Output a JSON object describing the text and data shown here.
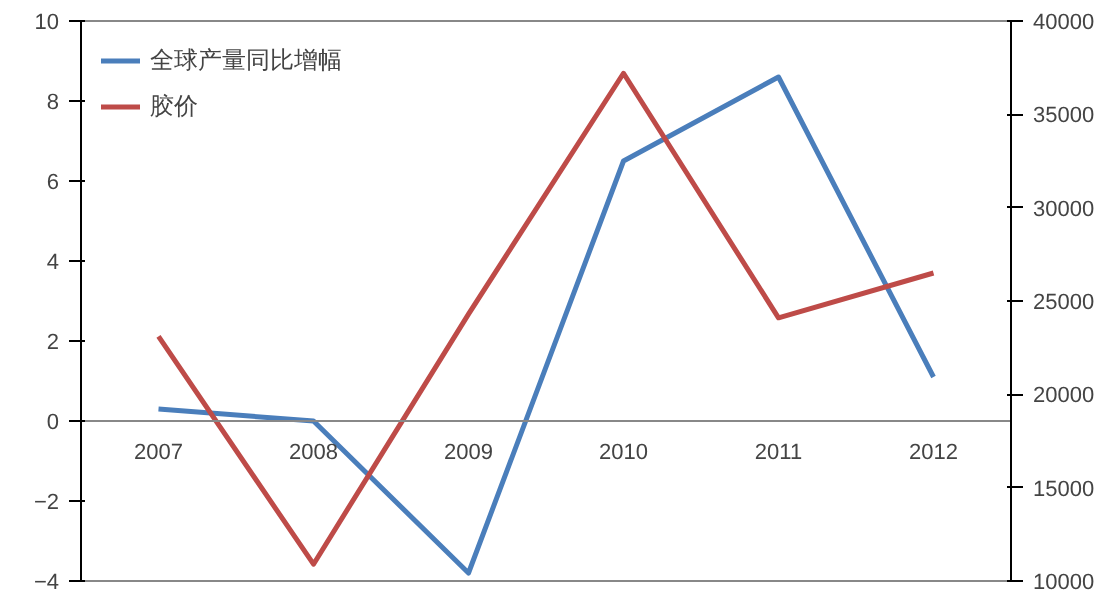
{
  "chart_data": {
    "type": "line",
    "categories": [
      "2007",
      "2008",
      "2009",
      "2010",
      "2011",
      "2012"
    ],
    "series": [
      {
        "name": "全球产量同比增幅",
        "color": "#4a7ebb",
        "values": [
          0.3,
          0.0,
          -3.8,
          6.5,
          8.6,
          1.1
        ]
      },
      {
        "name": "胶价",
        "color": "#be4b48",
        "axis": "y2",
        "values": [
          23100,
          10900,
          24300,
          37200,
          24100,
          26500
        ]
      }
    ],
    "ylim": [
      -4,
      10
    ],
    "yticks": [
      -4,
      -2,
      0,
      2,
      4,
      6,
      8,
      10
    ],
    "y2lim": [
      10000,
      40000
    ],
    "y2ticks": [
      10000,
      15000,
      20000,
      25000,
      30000,
      35000,
      40000
    ],
    "legend": "top left",
    "grid": false,
    "marker": "none",
    "line_style": "solid"
  }
}
